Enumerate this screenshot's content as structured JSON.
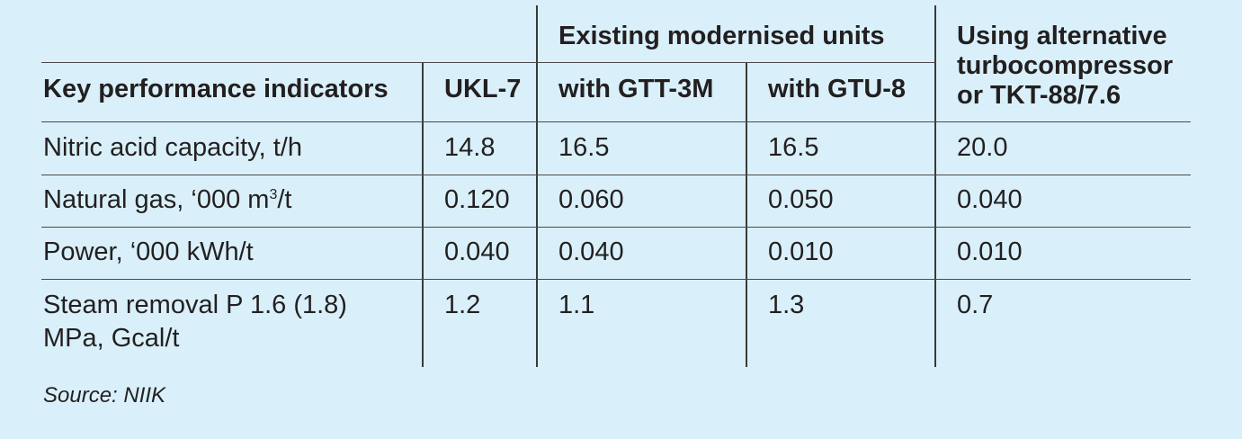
{
  "header": {
    "group_label": "Existing modernised units",
    "alt_label_line1": "Using alternative",
    "alt_label_line2": "turbocompressor",
    "alt_label_line3": "or TKT-88/7.6",
    "kpi_label": "Key performance indicators",
    "col_ukl": "UKL-7",
    "col_gtt": "with GTT-3M",
    "col_gtu": "with GTU-8"
  },
  "rows": [
    {
      "label": "Nitric acid capacity, t/h",
      "ukl": "14.8",
      "gtt": "16.5",
      "gtu": "16.5",
      "alt": "20.0"
    },
    {
      "label_prefix": "Natural gas, ‘000 m",
      "label_sup": "3",
      "label_suffix": "/t",
      "ukl": "0.120",
      "gtt": "0.060",
      "gtu": "0.050",
      "alt": "0.040"
    },
    {
      "label": "Power, ‘000 kWh/t",
      "ukl": "0.040",
      "gtt": "0.040",
      "gtu": "0.010",
      "alt": "0.010"
    },
    {
      "label_line1": "Steam removal P 1.6 (1.8)",
      "label_line2": "MPa, Gcal/t",
      "ukl": "1.2",
      "gtt": "1.1",
      "gtu": "1.3",
      "alt": "0.7"
    }
  ],
  "source": "Source: NIIK"
}
